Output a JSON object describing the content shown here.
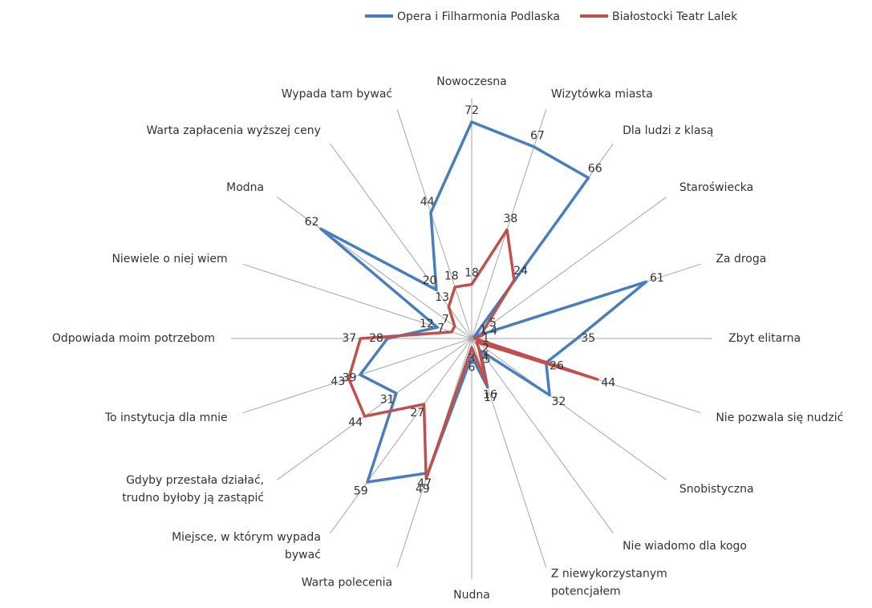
{
  "chart_data": {
    "type": "radar",
    "categories": [
      "Nowoczesna",
      "Wizytówka miasta",
      "Dla ludzi z klasą",
      "Staroświecka",
      "Za droga",
      "Zbyt elitarna",
      "Nie pozwala się nudzić",
      "Snobistyczna",
      "Nie wiadomo dla kogo",
      "Z niewykorzystanym potencjałem",
      "Nudna",
      "Warta polecenia",
      "Miejsce, w którym wypada bywać",
      "Gdyby przestała działać, trudno byłoby ją zastąpić",
      "To instytucja dla mnie",
      "Odpowiada moim potrzebom",
      "Niewiele o niej wiem",
      "Modna",
      "Warta zapłacenia wyższej ceny",
      "Wypada tam bywać"
    ],
    "series": [
      {
        "name": "Opera i Filharmonia Podlaska",
        "color": "#4a7ebb",
        "label_color": "#3e7a8a",
        "values": [
          72,
          67,
          66,
          1,
          61,
          35,
          26,
          32,
          5,
          17,
          6,
          47,
          59,
          31,
          39,
          28,
          12,
          62,
          20,
          44
        ]
      },
      {
        "name": "Białostocki Teatr Lalek",
        "color": "#c0504d",
        "label_color": "#c0392b",
        "values": [
          18,
          38,
          24,
          5,
          4,
          1,
          44,
          2,
          4,
          16,
          3,
          49,
          27,
          44,
          43,
          37,
          7,
          7,
          13,
          18
        ]
      }
    ],
    "ylim": [
      0,
      80
    ],
    "legend": "top"
  }
}
